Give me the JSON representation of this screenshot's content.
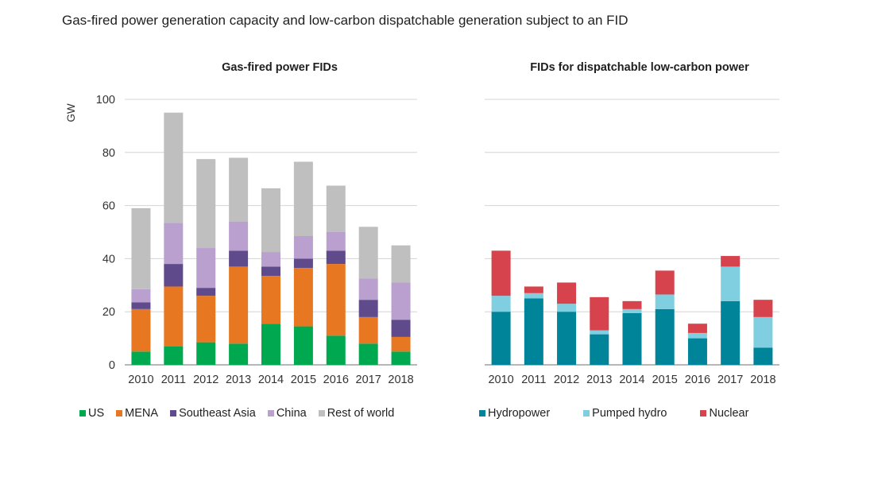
{
  "figure_title": "Gas-fired power generation capacity and low-carbon dispatchable generation subject to an FID",
  "chart_data": [
    {
      "type": "bar",
      "stacked": true,
      "title": "Gas-fired power FIDs",
      "ylabel": "GW",
      "xlabel": "",
      "ylim": [
        0,
        100
      ],
      "yticks": [
        0,
        20,
        40,
        60,
        80,
        100
      ],
      "grid": true,
      "legend_position": "bottom",
      "categories": [
        "2010",
        "2011",
        "2012",
        "2013",
        "2014",
        "2015",
        "2016",
        "2017",
        "2018"
      ],
      "series": [
        {
          "name": "US",
          "color": "#00a94f",
          "values": [
            5,
            7,
            8.5,
            8,
            15.5,
            14.5,
            11,
            8,
            5
          ]
        },
        {
          "name": "MENA",
          "color": "#e87722",
          "values": [
            16,
            22.5,
            17.5,
            29,
            18,
            22,
            27,
            10,
            5.5
          ]
        },
        {
          "name": "Southeast Asia",
          "color": "#5f4b8b",
          "values": [
            2.5,
            8.5,
            3,
            6,
            3.5,
            3.5,
            5,
            6.5,
            6.5
          ]
        },
        {
          "name": "China",
          "color": "#b9a0cf",
          "values": [
            5,
            15.5,
            15,
            11,
            5.5,
            8.5,
            7,
            8,
            14
          ]
        },
        {
          "name": "Rest of world",
          "color": "#bfbfbf",
          "values": [
            30.5,
            41.5,
            33.5,
            24,
            24,
            28,
            17.5,
            19.5,
            14
          ]
        }
      ]
    },
    {
      "type": "bar",
      "stacked": true,
      "title": "FIDs for dispatchable low-carbon power",
      "ylabel": "",
      "xlabel": "",
      "ylim": [
        0,
        100
      ],
      "yticks": [
        0,
        20,
        40,
        60,
        80,
        100
      ],
      "grid": true,
      "legend_position": "bottom",
      "categories": [
        "2010",
        "2011",
        "2012",
        "2013",
        "2014",
        "2015",
        "2016",
        "2017",
        "2018"
      ],
      "series": [
        {
          "name": "Hydropower",
          "color": "#00849a",
          "values": [
            20,
            25,
            20,
            11.5,
            19.5,
            21,
            10,
            24,
            6.5
          ]
        },
        {
          "name": "Pumped hydro",
          "color": "#80cfe0",
          "values": [
            6,
            2,
            3,
            1.5,
            1.5,
            5.5,
            2,
            13,
            11.5
          ]
        },
        {
          "name": "Nuclear",
          "color": "#d6434c",
          "values": [
            17,
            2.5,
            8,
            12.5,
            3,
            9,
            3.5,
            4,
            6.5
          ]
        }
      ]
    }
  ]
}
